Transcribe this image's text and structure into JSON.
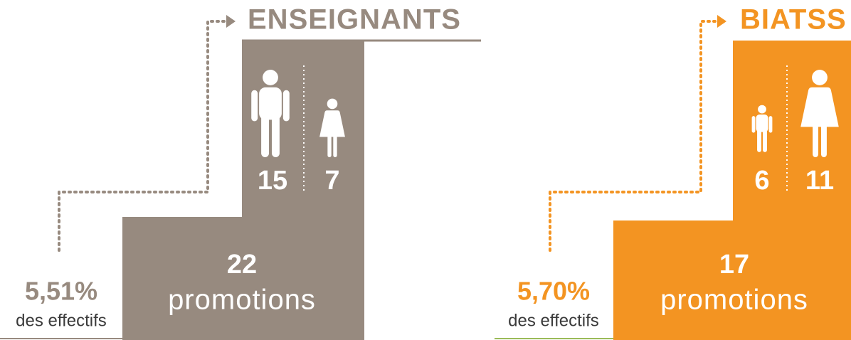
{
  "panels": [
    {
      "title": "ENSEIGNANTS",
      "rate": "5,51%",
      "rate_label": "des effectifs",
      "total": "22",
      "total_label": "promotions",
      "men": "15",
      "women": "7"
    },
    {
      "title": "BIATSS",
      "rate": "5,70%",
      "rate_label": "des effectifs",
      "total": "17",
      "total_label": "promotions",
      "men": "6",
      "women": "11"
    }
  ]
}
